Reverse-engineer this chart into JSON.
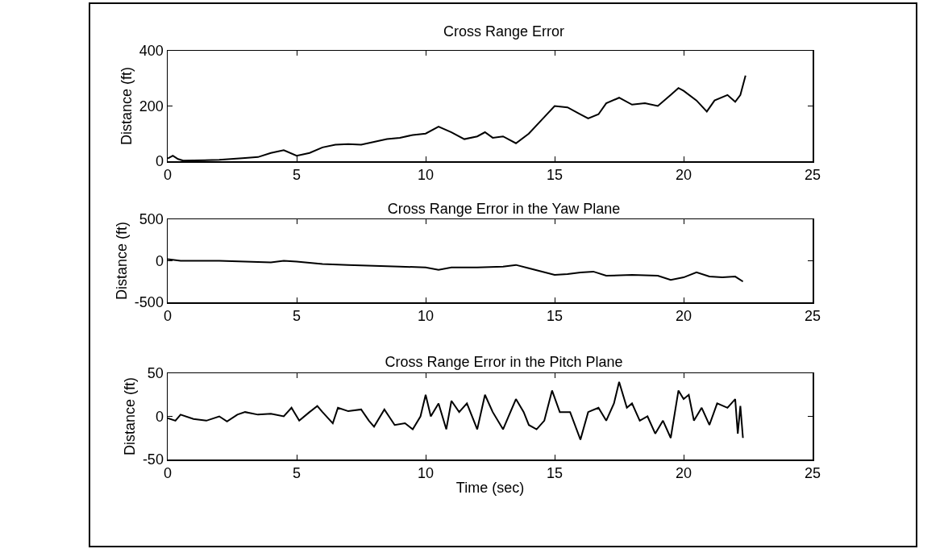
{
  "chart_data": [
    {
      "type": "line",
      "title": "Cross Range Error",
      "ylabel": "Distance (ft)",
      "color": "#000000",
      "grid": false,
      "x": [
        0,
        0.2,
        0.4,
        0.6,
        1,
        2,
        3,
        3.5,
        4,
        4.5,
        5,
        5.5,
        6,
        6.5,
        7,
        7.5,
        8,
        8.5,
        9,
        9.5,
        10,
        10.5,
        11,
        11.5,
        12,
        12.3,
        12.6,
        13,
        13.5,
        14,
        14.5,
        15,
        15.5,
        16,
        16.3,
        16.7,
        17,
        17.5,
        18,
        18.5,
        19,
        19.5,
        19.8,
        20,
        20.5,
        20.9,
        21.2,
        21.7,
        22,
        22.2,
        22.4
      ],
      "values": [
        10,
        20,
        8,
        2,
        3,
        5,
        12,
        15,
        30,
        40,
        20,
        30,
        50,
        60,
        62,
        60,
        70,
        80,
        85,
        95,
        100,
        125,
        105,
        80,
        90,
        105,
        85,
        90,
        65,
        100,
        150,
        200,
        195,
        170,
        155,
        170,
        210,
        230,
        205,
        210,
        200,
        240,
        265,
        255,
        220,
        180,
        220,
        240,
        215,
        240,
        310
      ],
      "xlim": [
        0,
        25
      ],
      "xticks": [
        0,
        5,
        10,
        15,
        20,
        25
      ],
      "ylim": [
        0,
        400
      ],
      "yticks": [
        0,
        200,
        400
      ]
    },
    {
      "type": "line",
      "title": "Cross Range Error in the Yaw Plane",
      "ylabel": "Distance (ft)",
      "color": "#000000",
      "grid": false,
      "x": [
        0,
        0.5,
        2,
        3,
        4,
        4.5,
        5,
        6,
        7,
        8,
        9,
        10,
        10.5,
        11,
        12,
        13,
        13.5,
        14,
        15,
        15.5,
        16,
        16.5,
        17,
        18,
        19,
        19.5,
        20,
        20.5,
        21,
        21.5,
        22,
        22.3
      ],
      "values": [
        20,
        0,
        0,
        -10,
        -20,
        0,
        -10,
        -40,
        -50,
        -60,
        -70,
        -80,
        -110,
        -80,
        -80,
        -70,
        -50,
        -90,
        -170,
        -160,
        -140,
        -130,
        -180,
        -170,
        -180,
        -230,
        -200,
        -140,
        -190,
        -200,
        -190,
        -250
      ],
      "xlim": [
        0,
        25
      ],
      "xticks": [
        0,
        5,
        10,
        15,
        20,
        25
      ],
      "ylim": [
        -500,
        500
      ],
      "yticks": [
        -500,
        0,
        500
      ]
    },
    {
      "type": "line",
      "title": "Cross Range Error in the Pitch Plane",
      "xlabel": "Time (sec)",
      "ylabel": "Distance (ft)",
      "color": "#000000",
      "grid": false,
      "x": [
        0,
        0.3,
        0.5,
        1,
        1.5,
        2,
        2.3,
        2.7,
        3,
        3.5,
        4,
        4.5,
        4.8,
        5.1,
        5.5,
        5.8,
        6,
        6.4,
        6.6,
        7,
        7.5,
        7.8,
        8,
        8.4,
        8.8,
        9.2,
        9.5,
        9.8,
        10,
        10.2,
        10.5,
        10.8,
        11,
        11.3,
        11.6,
        12,
        12.3,
        12.6,
        13,
        13.5,
        13.8,
        14,
        14.3,
        14.6,
        14.9,
        15.2,
        15.6,
        16,
        16.3,
        16.7,
        17,
        17.3,
        17.5,
        17.8,
        18,
        18.3,
        18.6,
        18.9,
        19.2,
        19.5,
        19.8,
        20,
        20.2,
        20.4,
        20.7,
        21,
        21.3,
        21.7,
        22,
        22.1,
        22.2,
        22.3
      ],
      "values": [
        -2,
        -5,
        2,
        -3,
        -5,
        0,
        -6,
        2,
        5,
        2,
        3,
        0,
        10,
        -5,
        5,
        12,
        5,
        -8,
        10,
        6,
        8,
        -5,
        -12,
        8,
        -10,
        -8,
        -15,
        0,
        25,
        0,
        15,
        -15,
        18,
        5,
        15,
        -15,
        25,
        5,
        -15,
        20,
        5,
        -10,
        -15,
        -5,
        30,
        5,
        5,
        -27,
        5,
        10,
        -5,
        15,
        40,
        10,
        15,
        -5,
        0,
        -20,
        -5,
        -25,
        30,
        20,
        25,
        -5,
        10,
        -10,
        15,
        10,
        20,
        -20,
        12,
        -25
      ],
      "xlim": [
        0,
        25
      ],
      "xticks": [
        0,
        5,
        10,
        15,
        20,
        25
      ],
      "ylim": [
        -50,
        50
      ],
      "yticks": [
        -50,
        0,
        50
      ]
    }
  ]
}
